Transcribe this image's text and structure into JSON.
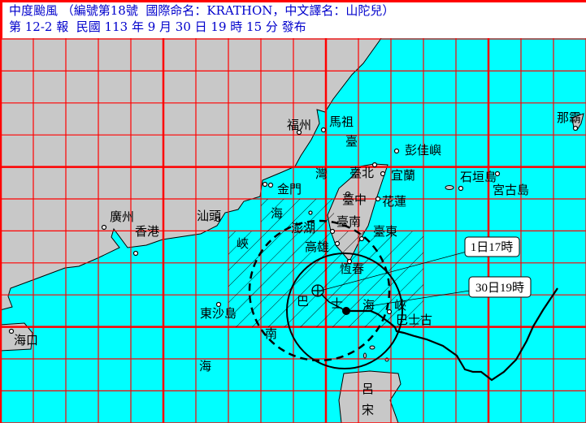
{
  "header": {
    "line1": "中度颱風 （編號第18號  國際命名：KRATHON，中文譯名：山陀兒）",
    "line2": "第 12-2 報  民國 113 年 9 月 30 日 19 時 15 分 發布"
  },
  "colors": {
    "sea": "#00ffff",
    "land": "#c8c8c8",
    "grid": "#ff0000",
    "header_text": "#0000cc"
  },
  "places": {
    "fuzhou": "福州",
    "matsu": "馬祖",
    "pengjia": "彭佳嶼",
    "taipei": "臺北",
    "yilan": "宜蘭",
    "taichung": "臺中",
    "hualien": "花蓮",
    "tainan": "臺南",
    "taitung": "臺東",
    "penghu": "澎湖",
    "kaohsiung": "高雄",
    "hengchun": "恆春",
    "basco": "巴士古",
    "ishigaki": "石垣島",
    "miyako": "宮古島",
    "naha": "那霸",
    "kinmen": "金門",
    "shantou": "汕頭",
    "guangzhou": "廣州",
    "hongkong": "香港",
    "dongsha": "東沙島",
    "haikou": "海口",
    "luzon_1": "呂",
    "luzon_2": "宋"
  },
  "seas": {
    "taiwan_strait": [
      "臺",
      "灣",
      "海",
      "峽"
    ],
    "bashi_channel": [
      "巴",
      "士",
      "海",
      "峽"
    ],
    "south_china_sea": [
      "南",
      "海"
    ]
  },
  "forecast": {
    "current_time": "30日19時",
    "forecast_time": "1日17時"
  }
}
